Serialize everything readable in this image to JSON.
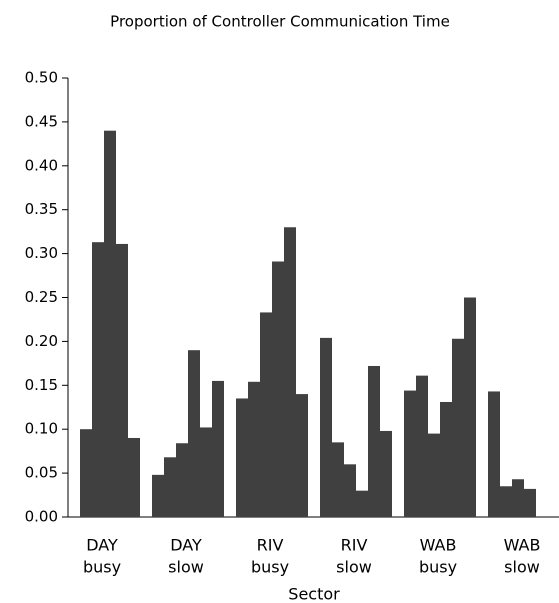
{
  "chart_data": {
    "type": "bar",
    "title": "Proportion of Controller Communication Time",
    "xlabel": "Sector",
    "color": "#404040",
    "groups": [
      {
        "label": [
          "DAY",
          "busy"
        ],
        "values": [
          null,
          0.1,
          0.313,
          0.44,
          0.311,
          0.09
        ]
      },
      {
        "label": [
          "DAY",
          "slow"
        ],
        "values": [
          0.048,
          0.068,
          0.084,
          0.19,
          0.102,
          0.155
        ]
      },
      {
        "label": [
          "RIV",
          "busy"
        ],
        "values": [
          0.135,
          0.154,
          0.233,
          0.291,
          0.33,
          0.14
        ]
      },
      {
        "label": [
          "RIV",
          "slow"
        ],
        "values": [
          0.204,
          0.085,
          0.06,
          0.03,
          0.172,
          0.098
        ]
      },
      {
        "label": [
          "WAB",
          "busy"
        ],
        "values": [
          0.144,
          0.161,
          0.095,
          0.131,
          0.203,
          0.25
        ]
      },
      {
        "label": [
          "WAB",
          "slow"
        ],
        "values": [
          0.143,
          0.035,
          0.043,
          0.032
        ]
      }
    ],
    "ylim": [
      0,
      0.5
    ],
    "yticks": [
      {
        "value": 0,
        "label": "0.00"
      },
      0.05,
      {
        "value": 0.1,
        "label": "0.10"
      },
      0.15,
      {
        "value": 0.2,
        "label": "0.20"
      },
      0.25,
      {
        "value": 0.3,
        "label": "0.30"
      },
      0.35,
      {
        "value": 0.4,
        "label": "0.40"
      },
      0.45,
      {
        "value": 0.5,
        "label": "0.50"
      }
    ]
  }
}
